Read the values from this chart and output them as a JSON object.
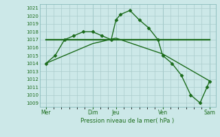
{
  "bg_color": "#cce8e8",
  "grid_color": "#aacccc",
  "line_color": "#1a6b1a",
  "xlabel": "Pression niveau de la mer( hPa )",
  "ylim": [
    1008.5,
    1021.5
  ],
  "yticks": [
    1009,
    1010,
    1011,
    1012,
    1013,
    1014,
    1015,
    1016,
    1017,
    1018,
    1019,
    1020,
    1021
  ],
  "xtick_labels": [
    "Mer",
    "Dim",
    "Jeu",
    "Ven",
    "Sam"
  ],
  "xtick_positions": [
    0,
    60,
    90,
    150,
    210
  ],
  "xlim": [
    -8,
    218
  ],
  "vlines": [
    0,
    60,
    90,
    150,
    210
  ],
  "series": [
    {
      "x": [
        0,
        12,
        24,
        36,
        48,
        60,
        72,
        84,
        90,
        96,
        108,
        120,
        132,
        144,
        150,
        162,
        174,
        186,
        198,
        207,
        210
      ],
      "y": [
        1014,
        1015,
        1017,
        1017.5,
        1018,
        1018,
        1017.5,
        1017,
        1019.5,
        1020.2,
        1020.7,
        1019.5,
        1018.5,
        1017,
        1015,
        1014,
        1012.5,
        1010,
        1009,
        1011,
        1011.7
      ],
      "marker": "D",
      "markersize": 2.5,
      "linewidth": 1.0
    },
    {
      "x": [
        0,
        60,
        90,
        150,
        210
      ],
      "y": [
        1017,
        1017,
        1017,
        1017,
        1017
      ],
      "marker": null,
      "linewidth": 1.6
    },
    {
      "x": [
        0,
        60,
        90,
        150,
        210
      ],
      "y": [
        1014,
        1016.5,
        1017.2,
        1015.2,
        1011.8
      ],
      "marker": null,
      "linewidth": 1.0
    }
  ]
}
